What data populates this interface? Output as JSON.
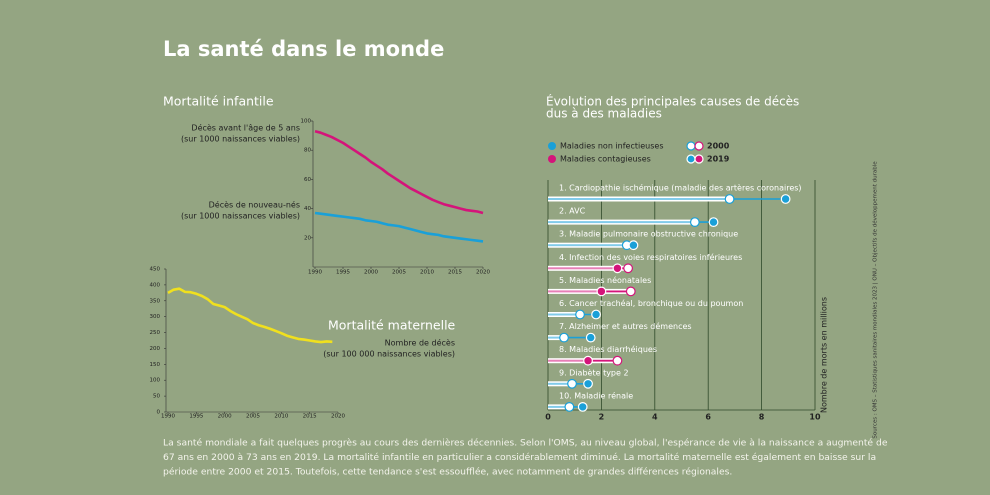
{
  "title": "La santé dans le monde",
  "body": [
    "La santé mondiale a fait quelques progrès au cours des dernières décennies. Selon l'OMS, au niveau global, l'espérance de vie à la naissance a augmenté de",
    "67 ans en 2000 à 73 ans en 2019. La mortalité infantile en particulier a considérablement diminué. La mortalité maternelle est également en baisse sur la",
    "période entre 2000 et 2015. Toutefois, cette tendance s'est essoufflée, avec notamment de grandes différences régionales."
  ],
  "sources": "Sources : OMS – Statistiques sanitaires mondiales 2023 | ONU – Objectifs de développement durable",
  "chart_data": [
    {
      "type": "line",
      "title": [
        "Mortalité infantile"
      ],
      "x": [
        1990,
        1991,
        1992,
        1993,
        1994,
        1995,
        1996,
        1997,
        1998,
        1999,
        2000,
        2001,
        2002,
        2003,
        2004,
        2005,
        2006,
        2007,
        2008,
        2009,
        2010,
        2011,
        2012,
        2013,
        2014,
        2015,
        2016,
        2017,
        2018,
        2019,
        2020
      ],
      "xlim": [
        1990,
        2020
      ],
      "xticks": [
        1990,
        1995,
        2000,
        2005,
        2010,
        2015,
        2020
      ],
      "ylim": [
        0,
        100
      ],
      "yticks": [
        20,
        40,
        60,
        80,
        100
      ],
      "series": [
        {
          "name": [
            "Décès avant l'âge de 5 ans",
            "(sur 1000 naissances viables)"
          ],
          "color": "#d4147a",
          "values": [
            93,
            92,
            90.5,
            89,
            87,
            85,
            82.5,
            80,
            77.5,
            75,
            72,
            69.5,
            67,
            64,
            61.5,
            59,
            56.5,
            54,
            52,
            50,
            48,
            46,
            44.5,
            43,
            42,
            41,
            40,
            39,
            38.5,
            38,
            37
          ]
        },
        {
          "name": [
            "Décès de nouveau-nés",
            "(sur 1000 naissances viables)"
          ],
          "color": "#1aa0d8",
          "values": [
            37,
            36.5,
            36,
            35.5,
            35,
            34.5,
            34,
            33.5,
            33,
            32,
            31.5,
            31,
            30,
            29,
            28.5,
            28,
            27,
            26,
            25,
            24,
            23,
            22.5,
            22,
            21,
            20.5,
            20,
            19.5,
            19,
            18.5,
            18,
            17.5
          ]
        }
      ]
    },
    {
      "type": "line",
      "title": [
        "Mortalité maternelle"
      ],
      "x": [
        1990,
        1991,
        1992,
        1993,
        1994,
        1995,
        1996,
        1997,
        1998,
        1999,
        2000,
        2001,
        2002,
        2003,
        2004,
        2005,
        2006,
        2007,
        2008,
        2009,
        2010,
        2011,
        2012,
        2013,
        2014,
        2015,
        2016,
        2017,
        2018,
        2019
      ],
      "xlim": [
        1990,
        2020
      ],
      "xticks": [
        1990,
        1995,
        2000,
        2005,
        2010,
        2015,
        2020
      ],
      "ylim": [
        0,
        450
      ],
      "yticks": [
        0,
        50,
        100,
        150,
        200,
        250,
        300,
        350,
        400,
        450
      ],
      "series": [
        {
          "name": [
            "Nombre de décès",
            "(sur 100 000 naissances viables)"
          ],
          "color": "#f0e01e",
          "values": [
            375,
            385,
            388,
            378,
            377,
            372,
            365,
            355,
            340,
            335,
            330,
            318,
            308,
            300,
            292,
            280,
            273,
            268,
            262,
            255,
            248,
            240,
            235,
            230,
            228,
            225,
            222,
            220,
            222,
            221
          ]
        }
      ]
    },
    {
      "type": "dumbbell",
      "title": [
        "Évolution des principales causes de décès",
        "dus à des maladies"
      ],
      "categories": [
        "1. Cardiopathie ischémique (maladie des artères coronaires)",
        "2. AVC",
        "3. Maladie pulmonaire obstructive chronique",
        "4. Infection des voies respiratoires inférieures",
        "5. Maladies néonatales",
        "6. Cancer trachéal, bronchique ou du poumon",
        "7. Alzheimer et autres démences",
        "8. Maladies diarrhéiques",
        "9. Diabète type 2",
        "10. Maladie rénale"
      ],
      "groups": [
        {
          "name": "Maladies non infectieuses",
          "color": "#1aa0d8"
        },
        {
          "name": "Maladies contagieuses",
          "color": "#d4147a"
        }
      ],
      "category_groups": [
        0,
        0,
        0,
        1,
        1,
        0,
        0,
        1,
        0,
        0
      ],
      "series": [
        {
          "name": "2000",
          "style": "hollow",
          "values": [
            6.8,
            5.5,
            2.95,
            3.0,
            3.1,
            1.2,
            0.6,
            2.6,
            0.9,
            0.8
          ]
        },
        {
          "name": "2019",
          "style": "filled",
          "values": [
            8.9,
            6.2,
            3.2,
            2.6,
            2.0,
            1.8,
            1.6,
            1.5,
            1.5,
            1.3
          ]
        }
      ],
      "xlim": [
        0,
        10
      ],
      "xticks": [
        0,
        2,
        4,
        6,
        8,
        10
      ],
      "grid": true,
      "xlabel": "Nombre de morts en millions"
    }
  ]
}
